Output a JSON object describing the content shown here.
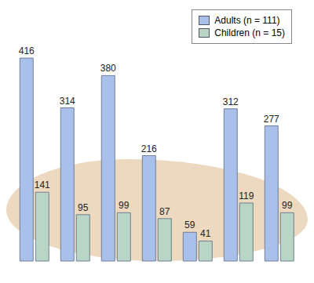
{
  "chart_data": {
    "type": "bar",
    "categories": [
      null,
      null,
      null,
      null,
      null,
      null,
      null
    ],
    "series": [
      {
        "name": "Adults (n = 111)",
        "color": "#a9c0ea",
        "values": [
          416,
          314,
          380,
          216,
          59,
          312,
          277
        ]
      },
      {
        "name": "Children (n = 15)",
        "color": "#b9d5c5",
        "values": [
          141,
          95,
          99,
          87,
          41,
          119,
          99
        ]
      }
    ],
    "data_labels": true,
    "tick_labels": false,
    "legend": "top-right",
    "grid": false
  }
}
